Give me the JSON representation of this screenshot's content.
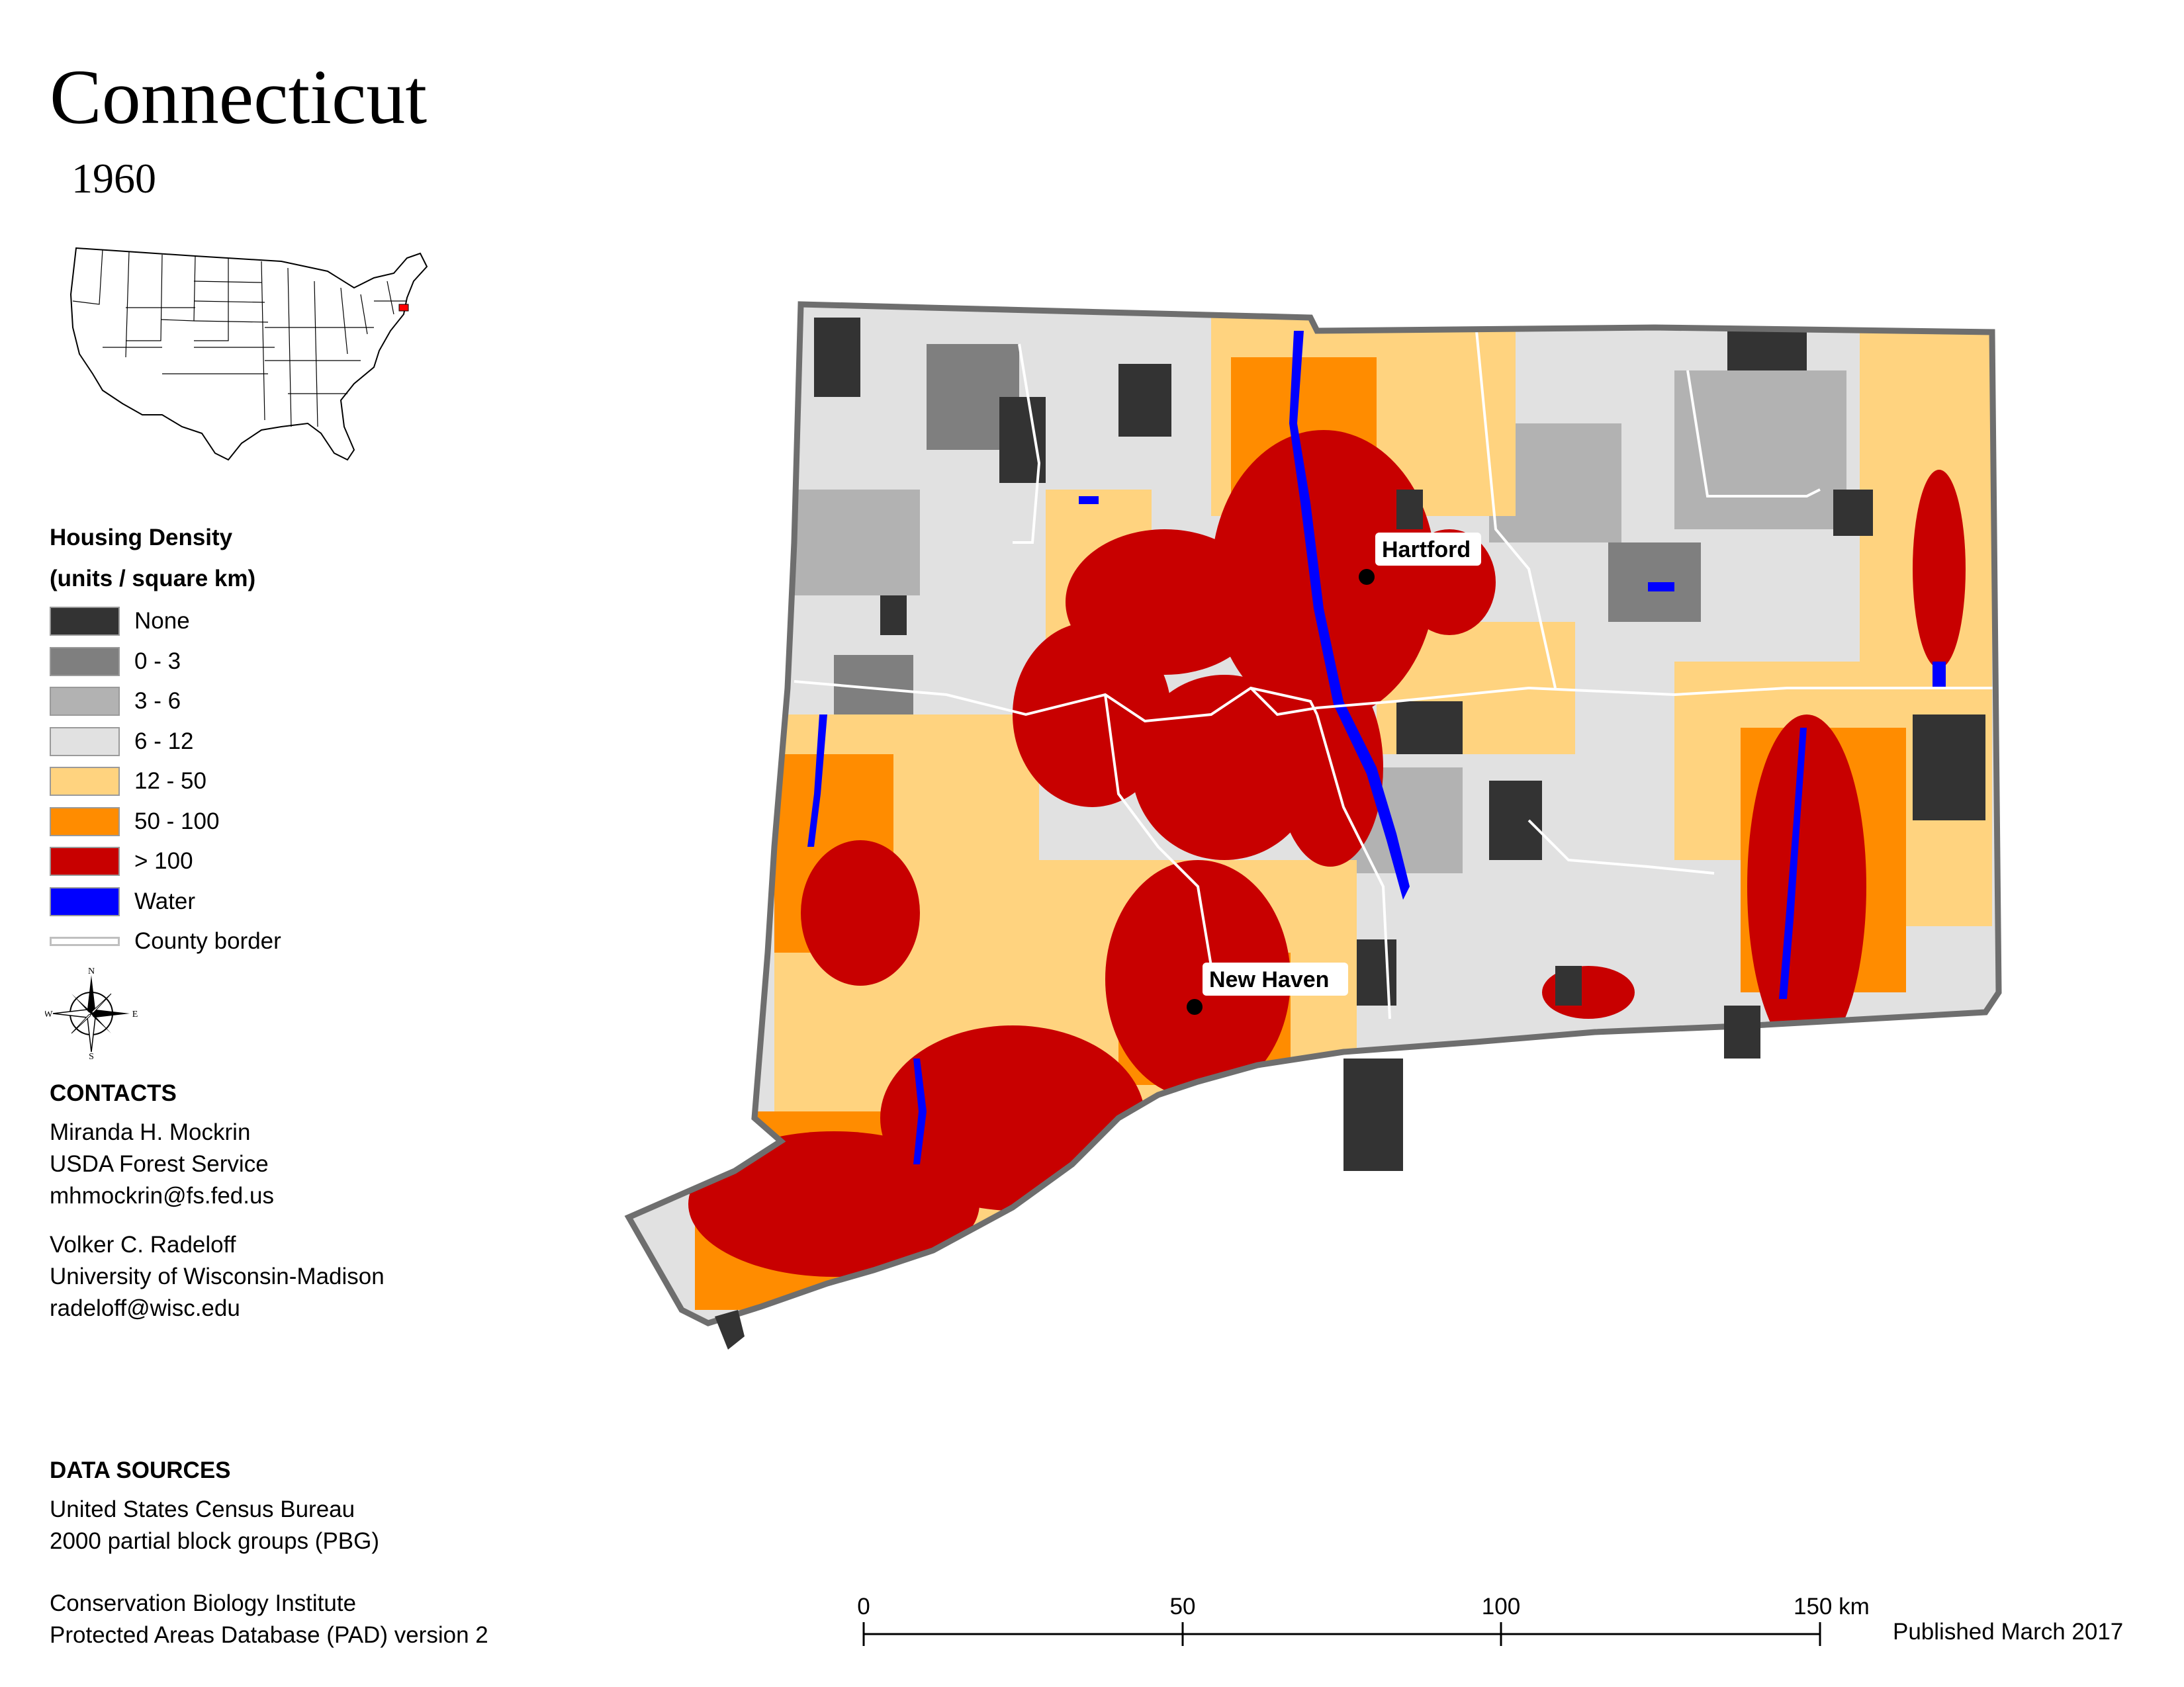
{
  "title": "Connecticut",
  "year": "1960",
  "legend": {
    "title_line1": "Housing Density",
    "title_line2": "(units / square km)",
    "items": [
      {
        "label": "None",
        "color": "#333333"
      },
      {
        "label": "0 - 3",
        "color": "#7f7f7f"
      },
      {
        "label": "3 - 6",
        "color": "#b2b2b2"
      },
      {
        "label": "6 - 12",
        "color": "#e1e1e1"
      },
      {
        "label": "12 - 50",
        "color": "#ffd37f"
      },
      {
        "label": "50 - 100",
        "color": "#ff8c00"
      },
      {
        "label": "> 100",
        "color": "#c80000"
      },
      {
        "label": "Water",
        "color": "#0000ff"
      }
    ],
    "county_border_label": "County border"
  },
  "compass": {
    "n": "N",
    "s": "S",
    "e": "E",
    "w": "W"
  },
  "contacts": {
    "heading": "CONTACTS",
    "person1": {
      "name": "Miranda H. Mockrin",
      "org": "USDA Forest Service",
      "email": "mhmockrin@fs.fed.us"
    },
    "person2": {
      "name": "Volker C. Radeloff",
      "org": "University of Wisconsin-Madison",
      "email": "radeloff@wisc.edu"
    }
  },
  "data_sources": {
    "heading": "DATA SOURCES",
    "line1": "United States Census Bureau",
    "line2": "2000 partial block groups (PBG)",
    "line3": "Conservation Biology Institute",
    "line4": "Protected Areas Database (PAD) version 2"
  },
  "cities": [
    {
      "name": "Hartford"
    },
    {
      "name": "New Haven"
    }
  ],
  "scale": {
    "ticks": [
      "0",
      "50",
      "100",
      "150 km"
    ]
  },
  "published": "Published March 2017",
  "inset_highlight_color": "#ff0000"
}
